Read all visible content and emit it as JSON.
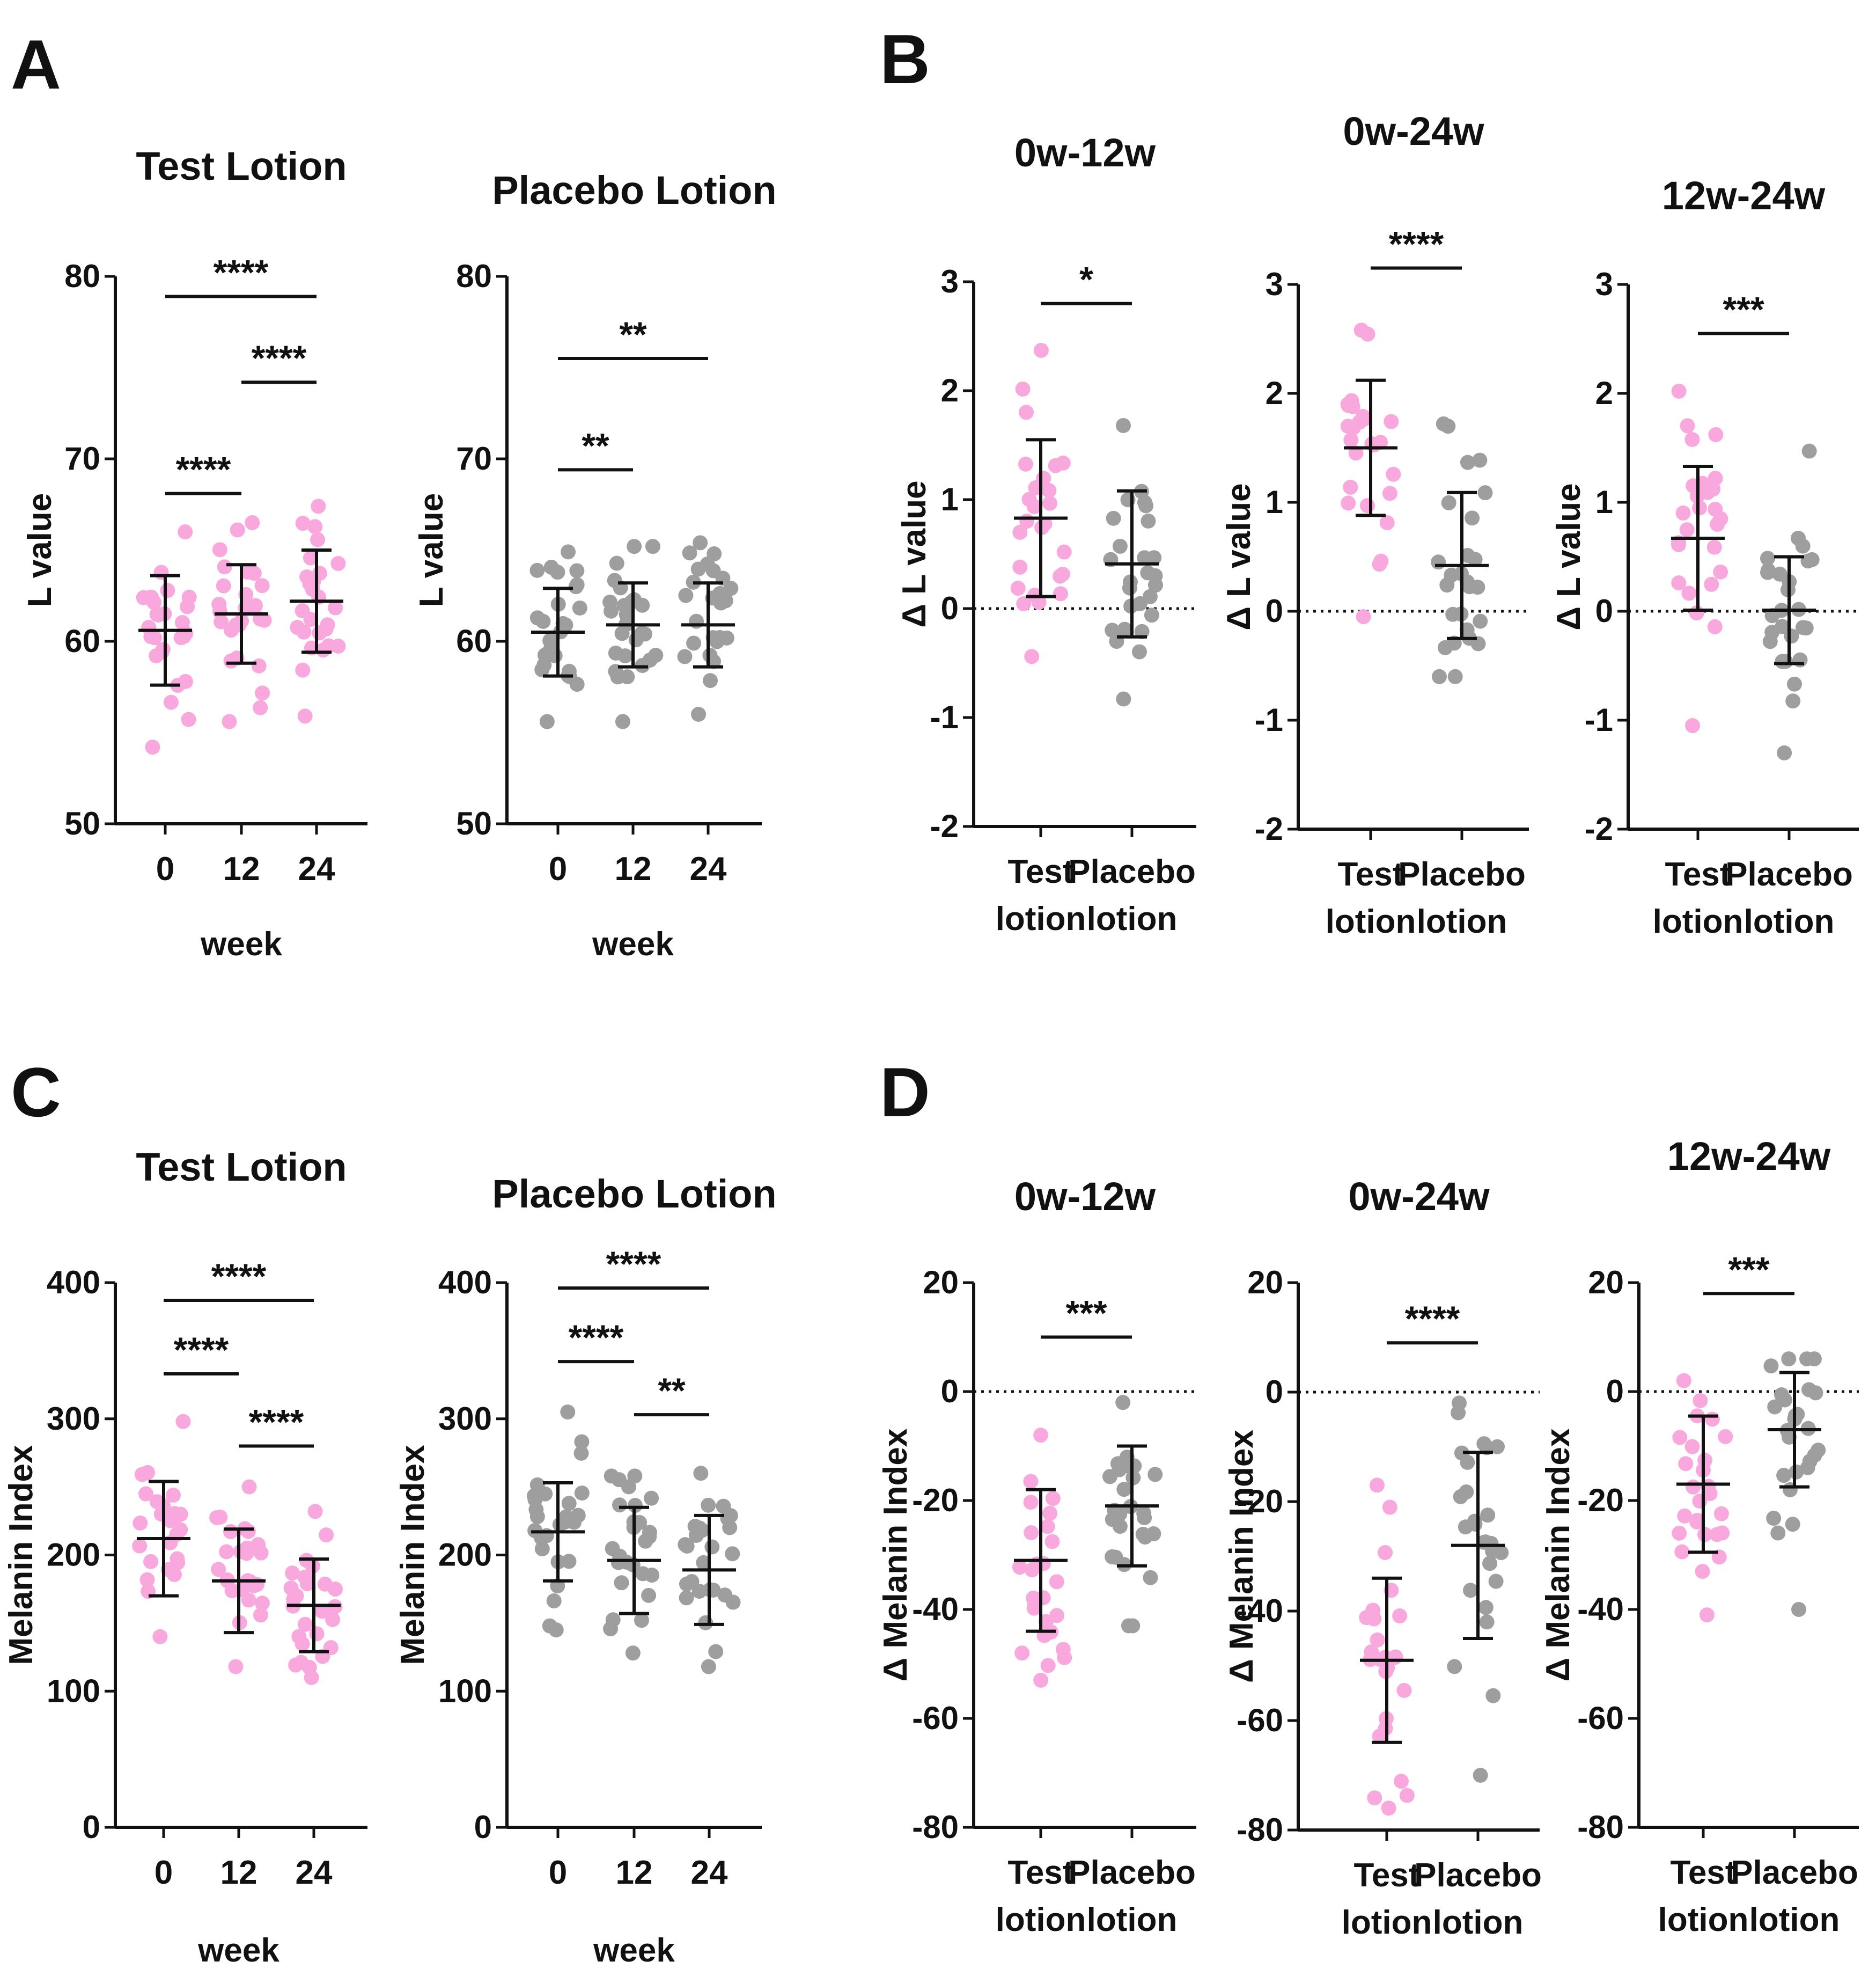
{
  "colors": {
    "test": "#f9a8dd",
    "placebo": "#9e9e9e",
    "axis": "#111111"
  },
  "panels": [
    {
      "letter": "A"
    },
    {
      "letter": "B"
    },
    {
      "letter": "C"
    },
    {
      "letter": "D"
    }
  ],
  "chart_data": [
    {
      "panel": "A",
      "type": "scatter",
      "title": "Test Lotion",
      "xlabel": "week",
      "ylabel": "L value",
      "categories": [
        "0",
        "12",
        "24"
      ],
      "ylim": [
        50,
        80
      ],
      "yticks": [
        50,
        60,
        70,
        80
      ],
      "color": "test",
      "series": [
        {
          "name": "0",
          "mean": 60.6,
          "sd": 3.0,
          "min": 54.2,
          "max": 66.0
        },
        {
          "name": "12",
          "mean": 61.5,
          "sd": 2.7,
          "min": 55.6,
          "max": 66.5
        },
        {
          "name": "24",
          "mean": 62.2,
          "sd": 2.8,
          "min": 55.9,
          "max": 67.4
        }
      ],
      "significance": [
        {
          "from": 0,
          "to": 1,
          "label": "****",
          "level": 68.1
        },
        {
          "from": 1,
          "to": 2,
          "label": "****",
          "level": 74.2
        },
        {
          "from": 0,
          "to": 2,
          "label": "****",
          "level": 78.9
        }
      ]
    },
    {
      "panel": "A",
      "type": "scatter",
      "title": "Placebo Lotion",
      "xlabel": "week",
      "ylabel": "L value",
      "categories": [
        "0",
        "12",
        "24"
      ],
      "ylim": [
        50,
        80
      ],
      "yticks": [
        50,
        60,
        70,
        80
      ],
      "color": "placebo",
      "series": [
        {
          "name": "0",
          "mean": 60.5,
          "sd": 2.4,
          "min": 55.6,
          "max": 64.9
        },
        {
          "name": "12",
          "mean": 60.9,
          "sd": 2.3,
          "min": 55.6,
          "max": 65.2
        },
        {
          "name": "24",
          "mean": 60.9,
          "sd": 2.3,
          "min": 56.0,
          "max": 65.4
        }
      ],
      "significance": [
        {
          "from": 0,
          "to": 1,
          "label": "**",
          "level": 69.4
        },
        {
          "from": 0,
          "to": 2,
          "label": "**",
          "level": 75.5
        }
      ]
    },
    {
      "panel": "B",
      "type": "scatter",
      "title": "0w-12w",
      "xlabel": "",
      "ylabel": "Δ L value",
      "categories": [
        "Test lotion",
        "Placebo lotion"
      ],
      "ylim": [
        -2,
        3
      ],
      "yticks": [
        -2,
        -1,
        0,
        1,
        2,
        3
      ],
      "colors": [
        "test",
        "placebo"
      ],
      "series": [
        {
          "name": "Test lotion",
          "mean": 0.83,
          "sd": 0.72,
          "min": -0.44,
          "max": 2.37
        },
        {
          "name": "Placebo lotion",
          "mean": 0.41,
          "sd": 0.67,
          "min": -0.83,
          "max": 1.68
        }
      ],
      "significance": [
        {
          "from": 0,
          "to": 1,
          "label": "*",
          "level": 2.8
        }
      ]
    },
    {
      "panel": "B",
      "type": "scatter",
      "title": "0w-24w",
      "xlabel": "",
      "ylabel": "Δ L value",
      "categories": [
        "Test lotion",
        "Placebo lotion"
      ],
      "ylim": [
        -2,
        3
      ],
      "yticks": [
        -2,
        -1,
        0,
        1,
        2,
        3
      ],
      "colors": [
        "test",
        "placebo"
      ],
      "series": [
        {
          "name": "Test lotion",
          "mean": 1.5,
          "sd": 0.62,
          "min": -0.05,
          "max": 2.58
        },
        {
          "name": "Placebo lotion",
          "mean": 0.42,
          "sd": 0.67,
          "min": -0.6,
          "max": 1.72
        }
      ],
      "significance": [
        {
          "from": 0,
          "to": 1,
          "label": "****",
          "level": 3.15
        }
      ]
    },
    {
      "panel": "B",
      "type": "scatter",
      "title": "12w-24w",
      "xlabel": "",
      "ylabel": "Δ L value",
      "categories": [
        "Test lotion",
        "Placebo lotion"
      ],
      "ylim": [
        -2,
        3
      ],
      "yticks": [
        -2,
        -1,
        0,
        1,
        2,
        3
      ],
      "colors": [
        "test",
        "placebo"
      ],
      "series": [
        {
          "name": "Test lotion",
          "mean": 0.67,
          "sd": 0.66,
          "min": -1.05,
          "max": 2.02
        },
        {
          "name": "Placebo lotion",
          "mean": 0.01,
          "sd": 0.49,
          "min": -1.3,
          "max": 1.47
        }
      ],
      "significance": [
        {
          "from": 0,
          "to": 1,
          "label": "***",
          "level": 2.55
        }
      ]
    },
    {
      "panel": "C",
      "type": "scatter",
      "title": "Test Lotion",
      "xlabel": "week",
      "ylabel": "Melanin Index",
      "categories": [
        "0",
        "12",
        "24"
      ],
      "ylim": [
        0,
        400
      ],
      "yticks": [
        0,
        100,
        200,
        300,
        400
      ],
      "color": "test",
      "series": [
        {
          "name": "0",
          "mean": 212,
          "sd": 42,
          "min": 140,
          "max": 298
        },
        {
          "name": "12",
          "mean": 181,
          "sd": 38,
          "min": 118,
          "max": 250
        },
        {
          "name": "24",
          "mean": 163,
          "sd": 34,
          "min": 110,
          "max": 232
        }
      ],
      "significance": [
        {
          "from": 0,
          "to": 1,
          "label": "****",
          "level": 333
        },
        {
          "from": 1,
          "to": 2,
          "label": "****",
          "level": 280
        },
        {
          "from": 0,
          "to": 2,
          "label": "****",
          "level": 387
        }
      ]
    },
    {
      "panel": "C",
      "type": "scatter",
      "title": "Placebo Lotion",
      "xlabel": "week",
      "ylabel": "Melanin Index",
      "categories": [
        "0",
        "12",
        "24"
      ],
      "ylim": [
        0,
        400
      ],
      "yticks": [
        0,
        100,
        200,
        300,
        400
      ],
      "color": "placebo",
      "series": [
        {
          "name": "0",
          "mean": 217,
          "sd": 36,
          "min": 145,
          "max": 305
        },
        {
          "name": "12",
          "mean": 196,
          "sd": 39,
          "min": 128,
          "max": 258
        },
        {
          "name": "24",
          "mean": 189,
          "sd": 40,
          "min": 118,
          "max": 260
        }
      ],
      "significance": [
        {
          "from": 0,
          "to": 1,
          "label": "****",
          "level": 342
        },
        {
          "from": 1,
          "to": 2,
          "label": "**",
          "level": 303
        },
        {
          "from": 0,
          "to": 2,
          "label": "****",
          "level": 396
        }
      ]
    },
    {
      "panel": "D",
      "type": "scatter",
      "title": "0w-12w",
      "xlabel": "",
      "ylabel": "Δ Melanin Index",
      "categories": [
        "Test lotion",
        "Placebo lotion"
      ],
      "ylim": [
        -80,
        20
      ],
      "yticks": [
        -80,
        -60,
        -40,
        -20,
        0,
        20
      ],
      "colors": [
        "test",
        "placebo"
      ],
      "series": [
        {
          "name": "Test lotion",
          "mean": -31,
          "sd": 13,
          "min": -53,
          "max": -8
        },
        {
          "name": "Placebo lotion",
          "mean": -21,
          "sd": 11,
          "min": -43,
          "max": -2
        }
      ],
      "significance": [
        {
          "from": 0,
          "to": 1,
          "label": "***",
          "level": 10
        }
      ]
    },
    {
      "panel": "D",
      "type": "scatter",
      "title": "0w-24w",
      "xlabel": "",
      "ylabel": "Δ Melanin Index",
      "categories": [
        "Test lotion",
        "Placebo lotion"
      ],
      "ylim": [
        -80,
        20
      ],
      "yticks": [
        -80,
        -60,
        -40,
        -20,
        0,
        20
      ],
      "colors": [
        "test",
        "placebo"
      ],
      "series": [
        {
          "name": "Test lotion",
          "mean": -49,
          "sd": 15,
          "min": -76,
          "max": -17
        },
        {
          "name": "Placebo lotion",
          "mean": -28,
          "sd": 17,
          "min": -70,
          "max": -2
        }
      ],
      "significance": [
        {
          "from": 0,
          "to": 1,
          "label": "****",
          "level": 9
        }
      ]
    },
    {
      "panel": "D",
      "type": "scatter",
      "title": "12w-24w",
      "xlabel": "",
      "ylabel": "Δ Melanin Index",
      "categories": [
        "Test lotion",
        "Placebo lotion"
      ],
      "ylim": [
        -80,
        20
      ],
      "yticks": [
        -80,
        -60,
        -40,
        -20,
        0,
        20
      ],
      "colors": [
        "test",
        "placebo"
      ],
      "series": [
        {
          "name": "Test lotion",
          "mean": -17,
          "sd": 12.5,
          "min": -41,
          "max": 2
        },
        {
          "name": "Placebo lotion",
          "mean": -7,
          "sd": 10.5,
          "min": -40,
          "max": 6
        }
      ],
      "significance": [
        {
          "from": 0,
          "to": 1,
          "label": "***",
          "level": 18
        }
      ]
    }
  ]
}
